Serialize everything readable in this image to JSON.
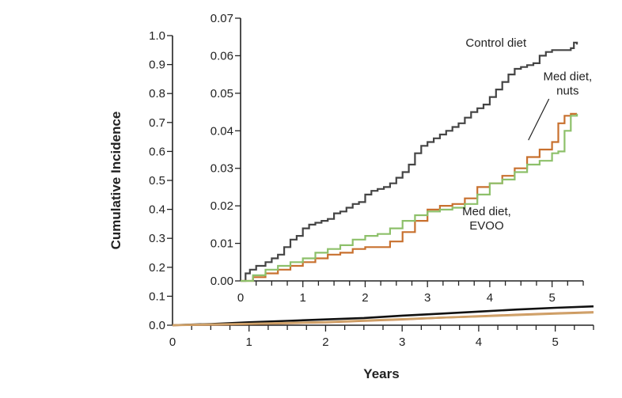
{
  "chart_data": [
    {
      "type": "line",
      "panel": "outer",
      "xlabel": "Years",
      "ylabel": "Cumulative Incidence",
      "xlim": [
        0,
        5.5
      ],
      "ylim": [
        0,
        1.0
      ],
      "xticks": [
        "0",
        "1",
        "2",
        "3",
        "4",
        "5"
      ],
      "yticks": [
        "0.0",
        "0.1",
        "0.2",
        "0.3",
        "0.4",
        "0.5",
        "0.6",
        "0.7",
        "0.8",
        "0.9",
        "1.0"
      ],
      "grid": false,
      "legend": "none",
      "series": [
        {
          "color": "#111111",
          "x": [
            0,
            0.5,
            1,
            1.5,
            2,
            2.5,
            3,
            3.5,
            4,
            4.5,
            5,
            5.5
          ],
          "y": [
            0,
            0.004,
            0.01,
            0.015,
            0.02,
            0.025,
            0.033,
            0.04,
            0.047,
            0.054,
            0.06,
            0.065
          ]
        },
        {
          "color": "#c8702e",
          "x": [
            0,
            0.5,
            1,
            1.5,
            2,
            2.5,
            3,
            3.5,
            4,
            4.5,
            5,
            5.5
          ],
          "y": [
            0,
            0.002,
            0.004,
            0.007,
            0.01,
            0.015,
            0.02,
            0.026,
            0.031,
            0.036,
            0.041,
            0.045
          ]
        },
        {
          "color": "#cfa26a",
          "x": [
            0,
            0.5,
            1,
            1.5,
            2,
            2.5,
            3,
            3.5,
            4,
            4.5,
            5,
            5.5
          ],
          "y": [
            0,
            0.003,
            0.005,
            0.008,
            0.011,
            0.016,
            0.021,
            0.026,
            0.03,
            0.035,
            0.04,
            0.044
          ]
        }
      ]
    },
    {
      "type": "line",
      "panel": "inset",
      "xlim": [
        0,
        5.5
      ],
      "ylim": [
        0,
        0.07
      ],
      "xticks": [
        "0",
        "1",
        "2",
        "3",
        "4",
        "5"
      ],
      "yticks": [
        "0.00",
        "0.01",
        "0.02",
        "0.03",
        "0.04",
        "0.05",
        "0.06",
        "0.07"
      ],
      "grid": false,
      "legend": "none",
      "annotations": [
        {
          "text": "Control diet",
          "near": "top-right"
        },
        {
          "lines": [
            "Med diet,",
            "nuts"
          ],
          "near": "upper-right"
        },
        {
          "lines": [
            "Med diet,",
            "EVOO"
          ],
          "near": "lower-right"
        }
      ],
      "series": [
        {
          "label": "Control diet",
          "color": "#444444",
          "x": [
            0,
            0.08,
            0.15,
            0.25,
            0.4,
            0.5,
            0.6,
            0.7,
            0.8,
            0.9,
            1.0,
            1.1,
            1.2,
            1.3,
            1.4,
            1.5,
            1.6,
            1.7,
            1.8,
            1.9,
            2.0,
            2.1,
            2.2,
            2.3,
            2.4,
            2.5,
            2.6,
            2.7,
            2.8,
            2.9,
            3.0,
            3.1,
            3.2,
            3.3,
            3.4,
            3.5,
            3.6,
            3.7,
            3.8,
            3.9,
            4.0,
            4.1,
            4.2,
            4.3,
            4.4,
            4.5,
            4.6,
            4.7,
            4.8,
            4.9,
            5.0,
            5.1,
            5.2,
            5.3,
            5.35,
            5.4
          ],
          "y": [
            0,
            0.002,
            0.003,
            0.004,
            0.005,
            0.006,
            0.007,
            0.009,
            0.011,
            0.012,
            0.014,
            0.015,
            0.0155,
            0.016,
            0.0165,
            0.018,
            0.0185,
            0.0195,
            0.0205,
            0.021,
            0.023,
            0.024,
            0.0245,
            0.025,
            0.026,
            0.0275,
            0.029,
            0.031,
            0.034,
            0.036,
            0.037,
            0.038,
            0.039,
            0.04,
            0.041,
            0.042,
            0.0435,
            0.045,
            0.046,
            0.047,
            0.049,
            0.051,
            0.053,
            0.055,
            0.0565,
            0.057,
            0.0575,
            0.058,
            0.06,
            0.061,
            0.0615,
            0.0615,
            0.0615,
            0.062,
            0.0635,
            0.063
          ]
        },
        {
          "label": "Med diet, nuts",
          "color": "#c8702e",
          "x": [
            0,
            0.2,
            0.4,
            0.6,
            0.8,
            1.0,
            1.2,
            1.4,
            1.6,
            1.8,
            2.0,
            2.2,
            2.4,
            2.6,
            2.8,
            3.0,
            3.2,
            3.4,
            3.6,
            3.8,
            4.0,
            4.2,
            4.4,
            4.6,
            4.8,
            5.0,
            5.1,
            5.2,
            5.3,
            5.4
          ],
          "y": [
            0,
            0.001,
            0.002,
            0.003,
            0.004,
            0.005,
            0.006,
            0.007,
            0.0075,
            0.0085,
            0.009,
            0.009,
            0.0105,
            0.013,
            0.016,
            0.019,
            0.02,
            0.0205,
            0.022,
            0.025,
            0.026,
            0.028,
            0.03,
            0.033,
            0.035,
            0.037,
            0.042,
            0.044,
            0.0445,
            0.0445
          ]
        },
        {
          "label": "Med diet, EVOO",
          "color": "#8dc06a",
          "x": [
            0,
            0.2,
            0.4,
            0.6,
            0.8,
            1.0,
            1.2,
            1.4,
            1.6,
            1.8,
            2.0,
            2.2,
            2.4,
            2.6,
            2.8,
            3.0,
            3.2,
            3.4,
            3.6,
            3.8,
            4.0,
            4.2,
            4.4,
            4.6,
            4.8,
            5.0,
            5.1,
            5.2,
            5.3,
            5.4
          ],
          "y": [
            0,
            0.0015,
            0.003,
            0.004,
            0.005,
            0.006,
            0.0075,
            0.0085,
            0.0095,
            0.011,
            0.012,
            0.0125,
            0.014,
            0.016,
            0.0175,
            0.0185,
            0.019,
            0.0195,
            0.0205,
            0.023,
            0.026,
            0.027,
            0.029,
            0.031,
            0.032,
            0.034,
            0.0345,
            0.04,
            0.044,
            0.0445
          ]
        }
      ]
    }
  ]
}
